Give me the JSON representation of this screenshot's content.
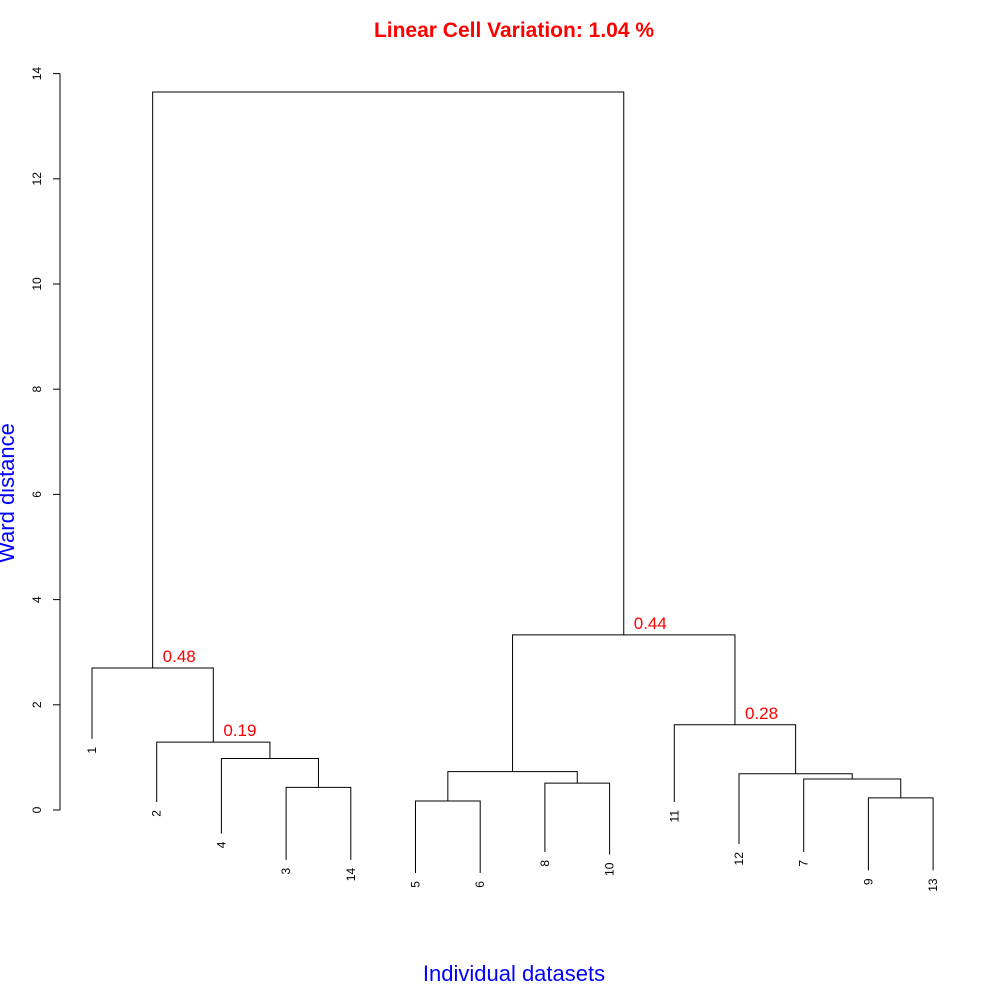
{
  "title": "Linear Cell Variation:   1.04 %",
  "xlabel": "Individual datasets",
  "ylabel": "Ward distance",
  "colors": {
    "title": "#ff0000",
    "axis_title": "#0000ff",
    "node_label": "#ff0000"
  },
  "chart_data": {
    "type": "dendrogram",
    "method": "ward",
    "ylim": [
      0,
      14
    ],
    "yticks": [
      0,
      2,
      4,
      6,
      8,
      10,
      12,
      14
    ],
    "leaf_order": [
      "1",
      "2",
      "4",
      "3",
      "14",
      "5",
      "6",
      "8",
      "10",
      "11",
      "12",
      "7",
      "9",
      "13"
    ],
    "merges": [
      {
        "id": "m1",
        "left": "3",
        "right": "14",
        "height": 0.43
      },
      {
        "id": "m2",
        "left": "4",
        "right": "m1",
        "height": 0.98
      },
      {
        "id": "m3",
        "left": "2",
        "right": "m2",
        "height": 1.29
      },
      {
        "id": "m4",
        "left": "1",
        "right": "m3",
        "height": 2.7
      },
      {
        "id": "m5",
        "left": "5",
        "right": "6",
        "height": 0.17
      },
      {
        "id": "m6",
        "left": "8",
        "right": "10",
        "height": 0.51
      },
      {
        "id": "m7",
        "left": "m5",
        "right": "m6",
        "height": 0.73
      },
      {
        "id": "m8",
        "left": "9",
        "right": "13",
        "height": 0.23
      },
      {
        "id": "m9",
        "left": "7",
        "right": "m8",
        "height": 0.59
      },
      {
        "id": "m10",
        "left": "12",
        "right": "m9",
        "height": 0.69
      },
      {
        "id": "m11",
        "left": "11",
        "right": "m10",
        "height": 1.62
      },
      {
        "id": "m12",
        "left": "m7",
        "right": "m11",
        "height": 3.33
      },
      {
        "id": "m13",
        "left": "m4",
        "right": "m12",
        "height": 13.65
      }
    ],
    "leaf_label_heights": {
      "1": 1.2,
      "2": 0.0,
      "4": -0.6,
      "3": -1.1,
      "14": -1.1,
      "5": -1.35,
      "6": -1.35,
      "8": -0.95,
      "10": -1.0,
      "11": 0.0,
      "12": -0.8,
      "7": -0.95,
      "9": -1.3,
      "13": -1.3
    },
    "node_labels": [
      {
        "node": "m4",
        "text": "0.48"
      },
      {
        "node": "m3",
        "text": "0.19"
      },
      {
        "node": "m12",
        "text": "0.44"
      },
      {
        "node": "m11",
        "text": "0.28"
      }
    ]
  }
}
